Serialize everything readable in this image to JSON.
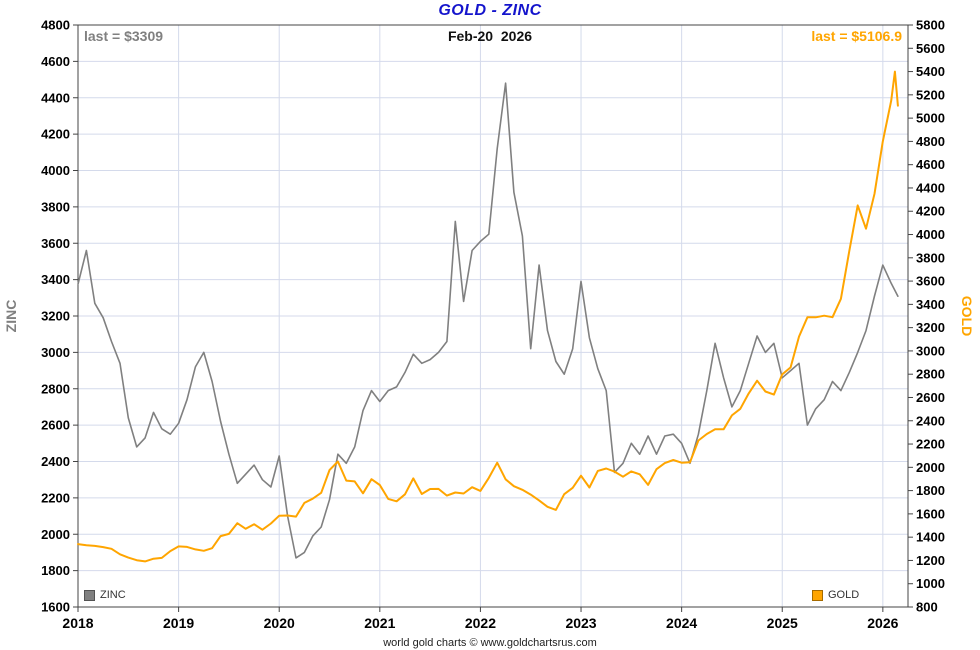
{
  "chart_data": {
    "type": "line",
    "title": "GOLD - ZINC",
    "date_label": "Feb-20  2026",
    "footer": "world gold charts © www.goldchartsrus.com",
    "colors": {
      "title": "#1414cc",
      "grid": "#d4daeb",
      "border": "#444444",
      "zinc": "#808080",
      "gold": "#FFA500"
    },
    "x_axis": {
      "range": [
        2018,
        2026.25
      ],
      "ticks": [
        2018,
        2019,
        2020,
        2021,
        2022,
        2023,
        2024,
        2025,
        2026
      ]
    },
    "left_axis": {
      "label": "ZINC",
      "range": [
        1600,
        4800
      ],
      "tick_step": 200,
      "ticks": [
        4800,
        4600,
        4400,
        4200,
        4000,
        3800,
        3600,
        3400,
        3200,
        3000,
        2800,
        2600,
        2400,
        2200,
        2000,
        1800,
        1600
      ]
    },
    "right_axis": {
      "label": "GOLD",
      "range": [
        800,
        5800
      ],
      "tick_step": 200,
      "ticks": [
        5800,
        5600,
        5400,
        5200,
        5000,
        4800,
        4600,
        4400,
        4200,
        4000,
        3800,
        3600,
        3400,
        3200,
        3000,
        2800,
        2600,
        2400,
        2200,
        2000,
        1800,
        1600,
        1400,
        1200,
        1000,
        800
      ]
    },
    "series": [
      {
        "name": "ZINC",
        "axis": "left",
        "color": "#808080",
        "last_label": "last = $3309",
        "last_value": 3309,
        "x": [
          2018.0,
          2018.083,
          2018.167,
          2018.25,
          2018.333,
          2018.417,
          2018.5,
          2018.583,
          2018.667,
          2018.75,
          2018.833,
          2018.917,
          2019.0,
          2019.083,
          2019.167,
          2019.25,
          2019.333,
          2019.417,
          2019.5,
          2019.583,
          2019.667,
          2019.75,
          2019.833,
          2019.917,
          2020.0,
          2020.083,
          2020.167,
          2020.25,
          2020.333,
          2020.417,
          2020.5,
          2020.583,
          2020.667,
          2020.75,
          2020.833,
          2020.917,
          2021.0,
          2021.083,
          2021.167,
          2021.25,
          2021.333,
          2021.417,
          2021.5,
          2021.583,
          2021.667,
          2021.75,
          2021.833,
          2021.917,
          2022.0,
          2022.083,
          2022.167,
          2022.25,
          2022.333,
          2022.417,
          2022.5,
          2022.583,
          2022.667,
          2022.75,
          2022.833,
          2022.917,
          2023.0,
          2023.083,
          2023.167,
          2023.25,
          2023.333,
          2023.417,
          2023.5,
          2023.583,
          2023.667,
          2023.75,
          2023.833,
          2023.917,
          2024.0,
          2024.083,
          2024.167,
          2024.25,
          2024.333,
          2024.417,
          2024.5,
          2024.583,
          2024.667,
          2024.75,
          2024.833,
          2024.917,
          2025.0,
          2025.083,
          2025.167,
          2025.25,
          2025.333,
          2025.417,
          2025.5,
          2025.583,
          2025.667,
          2025.75,
          2025.833,
          2025.917,
          2026.0,
          2026.083,
          2026.15
        ],
        "values": [
          3375,
          3560,
          3270,
          3190,
          3060,
          2940,
          2640,
          2480,
          2530,
          2670,
          2580,
          2550,
          2610,
          2740,
          2920,
          3000,
          2840,
          2620,
          2440,
          2280,
          2330,
          2380,
          2300,
          2260,
          2430,
          2100,
          1870,
          1900,
          1990,
          2040,
          2190,
          2440,
          2390,
          2480,
          2680,
          2790,
          2730,
          2790,
          2810,
          2890,
          2990,
          2940,
          2960,
          3000,
          3060,
          3720,
          3280,
          3560,
          3610,
          3650,
          4120,
          4480,
          3880,
          3640,
          3020,
          3480,
          3120,
          2950,
          2880,
          3020,
          3390,
          3080,
          2910,
          2790,
          2340,
          2390,
          2500,
          2440,
          2540,
          2440,
          2540,
          2550,
          2500,
          2390,
          2550,
          2790,
          3050,
          2860,
          2700,
          2790,
          2940,
          3090,
          3000,
          3050,
          2860,
          2900,
          2940,
          2600,
          2690,
          2740,
          2840,
          2790,
          2890,
          3000,
          3120,
          3310,
          3480,
          3380,
          3309
        ]
      },
      {
        "name": "GOLD",
        "axis": "right",
        "color": "#FFA500",
        "last_label": "last = $5106.9",
        "last_value": 5106.9,
        "x": [
          2018.0,
          2018.083,
          2018.167,
          2018.25,
          2018.333,
          2018.417,
          2018.5,
          2018.583,
          2018.667,
          2018.75,
          2018.833,
          2018.917,
          2019.0,
          2019.083,
          2019.167,
          2019.25,
          2019.333,
          2019.417,
          2019.5,
          2019.583,
          2019.667,
          2019.75,
          2019.833,
          2019.917,
          2020.0,
          2020.083,
          2020.167,
          2020.25,
          2020.333,
          2020.417,
          2020.5,
          2020.583,
          2020.667,
          2020.75,
          2020.833,
          2020.917,
          2021.0,
          2021.083,
          2021.167,
          2021.25,
          2021.333,
          2021.417,
          2021.5,
          2021.583,
          2021.667,
          2021.75,
          2021.833,
          2021.917,
          2022.0,
          2022.083,
          2022.167,
          2022.25,
          2022.333,
          2022.417,
          2022.5,
          2022.583,
          2022.667,
          2022.75,
          2022.833,
          2022.917,
          2023.0,
          2023.083,
          2023.167,
          2023.25,
          2023.333,
          2023.417,
          2023.5,
          2023.583,
          2023.667,
          2023.75,
          2023.833,
          2023.917,
          2024.0,
          2024.083,
          2024.167,
          2024.25,
          2024.333,
          2024.417,
          2024.5,
          2024.583,
          2024.667,
          2024.75,
          2024.833,
          2024.917,
          2025.0,
          2025.083,
          2025.167,
          2025.25,
          2025.333,
          2025.417,
          2025.5,
          2025.583,
          2025.667,
          2025.75,
          2025.833,
          2025.917,
          2026.0,
          2026.083,
          2026.12,
          2026.15
        ],
        "values": [
          1340,
          1330,
          1325,
          1315,
          1300,
          1253,
          1224,
          1202,
          1192,
          1215,
          1222,
          1280,
          1321,
          1316,
          1295,
          1283,
          1305,
          1409,
          1428,
          1520,
          1472,
          1511,
          1464,
          1517,
          1584,
          1586,
          1577,
          1694,
          1730,
          1781,
          1976,
          2050,
          1886,
          1879,
          1777,
          1898,
          1848,
          1729,
          1708,
          1768,
          1905,
          1771,
          1814,
          1815,
          1757,
          1784,
          1775,
          1829,
          1797,
          1909,
          2040,
          1897,
          1838,
          1807,
          1766,
          1716,
          1661,
          1634,
          1769,
          1824,
          1928,
          1827,
          1969,
          1990,
          1963,
          1919,
          1965,
          1940,
          1849,
          1984,
          2036,
          2063,
          2040,
          2044,
          2230,
          2286,
          2327,
          2327,
          2446,
          2503,
          2635,
          2744,
          2651,
          2625,
          2798,
          2858,
          3123,
          3289,
          3289,
          3303,
          3290,
          3448,
          3858,
          4250,
          4050,
          4350,
          4800,
          5150,
          5400,
          5106.9
        ]
      }
    ],
    "legend": [
      {
        "label": "ZINC"
      },
      {
        "label": "GOLD"
      }
    ]
  }
}
